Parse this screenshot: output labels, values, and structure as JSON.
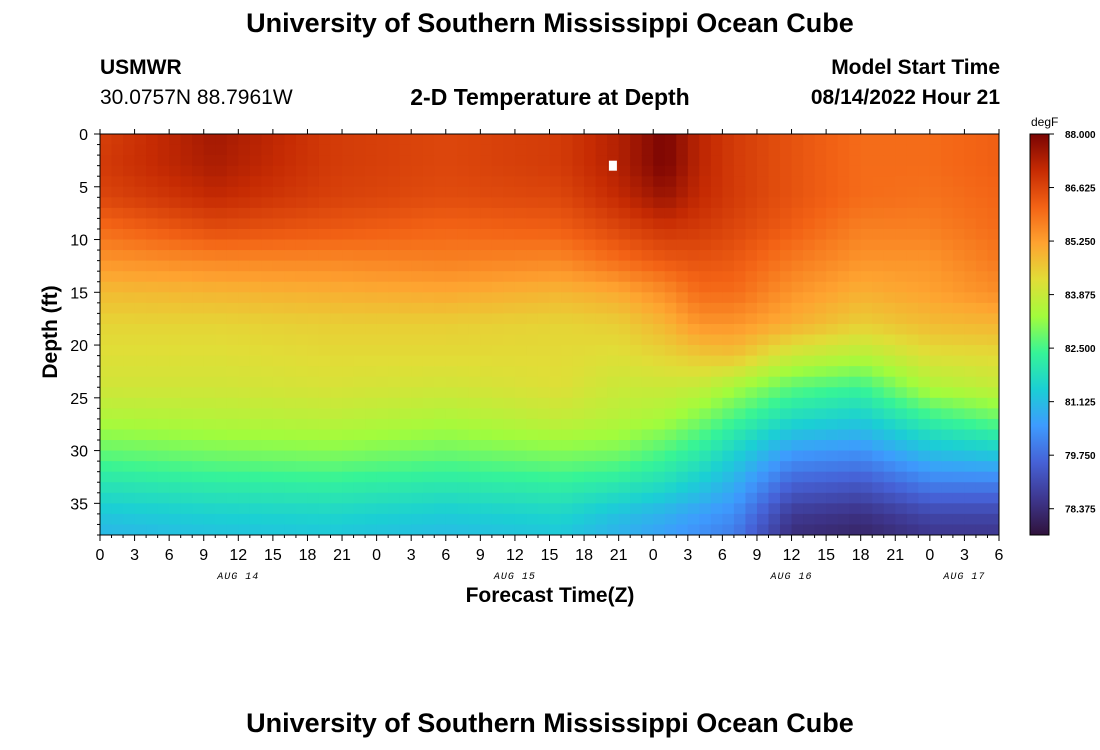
{
  "page": {
    "title": "University of Southern Mississippi Ocean Cube",
    "footer_title": "University of Southern Mississippi Ocean Cube",
    "station": "USMWR",
    "coords": "30.0757N  88.7961W",
    "subtitle": "2-D Temperature at Depth",
    "model_start_label": "Model Start Time",
    "model_start_value": "08/14/2022 Hour 21"
  },
  "chart_data": {
    "type": "heatmap",
    "title": "2-D Temperature at Depth",
    "xlabel": "Forecast Time(Z)",
    "ylabel": "Depth (ft)",
    "x_hours_range": [
      0,
      78
    ],
    "y_depth_range": [
      0,
      38
    ],
    "x_ticks_hours": [
      0,
      3,
      6,
      9,
      12,
      15,
      18,
      21,
      24,
      27,
      30,
      33,
      36,
      39,
      42,
      45,
      48,
      51,
      54,
      57,
      60,
      63,
      66,
      69,
      72,
      75,
      78
    ],
    "x_tick_labels": [
      "0",
      "3",
      "6",
      "9",
      "12",
      "15",
      "18",
      "21",
      "0",
      "3",
      "6",
      "9",
      "12",
      "15",
      "18",
      "21",
      "0",
      "3",
      "6",
      "9",
      "12",
      "15",
      "18",
      "21",
      "0",
      "3",
      "6"
    ],
    "day_labels": [
      {
        "label": "AUG 14",
        "hour": 12
      },
      {
        "label": "AUG 15",
        "hour": 36
      },
      {
        "label": "AUG 16",
        "hour": 60
      },
      {
        "label": "AUG 17",
        "hour": 75
      }
    ],
    "y_ticks": [
      0,
      5,
      10,
      15,
      20,
      25,
      30,
      35
    ],
    "y_tick_labels": [
      "0",
      "5",
      "10",
      "15",
      "20",
      "25",
      "30",
      "35"
    ],
    "colorbar": {
      "unit": "degF",
      "min": 77.7,
      "max": 88.0,
      "tick_values": [
        88.0,
        86.625,
        85.25,
        83.875,
        82.5,
        81.125,
        79.75,
        78.375
      ],
      "tick_labels": [
        "88.000",
        "86.625",
        "85.250",
        "83.875",
        "82.500",
        "81.125",
        "79.750",
        "78.375"
      ]
    },
    "temperature_profiles_degF": {
      "depths_ft": [
        0,
        3,
        6,
        9,
        12,
        15,
        18,
        21,
        24,
        27,
        30,
        33,
        36,
        38
      ],
      "profiles": [
        {
          "hour": 0,
          "values": [
            86.7,
            86.8,
            86.6,
            86.0,
            85.4,
            84.8,
            84.4,
            84.2,
            84.0,
            83.5,
            82.8,
            82.0,
            81.3,
            81.0
          ]
        },
        {
          "hour": 10,
          "values": [
            87.5,
            87.4,
            87.1,
            86.5,
            85.6,
            84.9,
            84.4,
            84.2,
            84.0,
            83.6,
            83.0,
            82.2,
            81.5,
            81.2
          ]
        },
        {
          "hour": 20,
          "values": [
            86.8,
            86.8,
            86.7,
            86.3,
            85.6,
            85.0,
            84.5,
            84.3,
            84.1,
            83.7,
            83.1,
            82.3,
            81.6,
            81.3
          ]
        },
        {
          "hour": 30,
          "values": [
            86.6,
            86.6,
            86.5,
            86.1,
            85.7,
            85.1,
            84.5,
            84.3,
            84.0,
            83.5,
            82.9,
            82.1,
            81.4,
            81.1
          ]
        },
        {
          "hour": 40,
          "values": [
            86.8,
            86.8,
            86.6,
            86.2,
            85.6,
            84.9,
            84.4,
            84.3,
            84.2,
            83.8,
            83.1,
            82.3,
            81.6,
            81.3
          ]
        },
        {
          "hour": 45,
          "values": [
            87.3,
            87.3,
            87.1,
            86.6,
            86.0,
            85.1,
            84.5,
            84.2,
            83.9,
            83.6,
            83.0,
            82.1,
            81.2,
            80.9
          ]
        },
        {
          "hour": 49,
          "values": [
            88.0,
            88.0,
            87.6,
            86.9,
            86.3,
            85.5,
            84.9,
            84.4,
            83.9,
            83.4,
            82.6,
            81.8,
            80.9,
            80.6
          ]
        },
        {
          "hour": 52,
          "values": [
            87.2,
            87.2,
            87.1,
            86.8,
            86.4,
            86.0,
            85.4,
            84.6,
            83.8,
            83.0,
            82.2,
            81.4,
            80.6,
            80.3
          ]
        },
        {
          "hour": 55,
          "values": [
            86.8,
            86.8,
            86.8,
            86.6,
            86.3,
            86.0,
            85.4,
            84.7,
            83.4,
            82.5,
            81.6,
            80.9,
            80.3,
            80.0
          ]
        },
        {
          "hour": 60,
          "values": [
            86.4,
            86.4,
            86.4,
            86.2,
            85.8,
            85.4,
            85.0,
            83.9,
            82.7,
            81.7,
            80.6,
            79.6,
            78.7,
            78.4
          ]
        },
        {
          "hour": 66,
          "values": [
            86.0,
            86.0,
            86.0,
            85.7,
            85.4,
            85.0,
            84.5,
            83.6,
            82.4,
            81.4,
            80.4,
            79.4,
            78.5,
            78.2
          ]
        },
        {
          "hour": 72,
          "values": [
            86.0,
            86.0,
            85.9,
            85.7,
            85.4,
            85.2,
            84.8,
            84.2,
            83.5,
            82.3,
            81.2,
            80.1,
            79.0,
            78.6
          ]
        },
        {
          "hour": 78,
          "values": [
            86.2,
            86.2,
            86.1,
            86.0,
            85.8,
            85.5,
            84.9,
            84.3,
            83.8,
            82.8,
            81.5,
            80.1,
            79.0,
            78.6
          ]
        }
      ]
    },
    "marker": {
      "hour": 44.5,
      "depth_ft": 3,
      "color": "#ffffff"
    },
    "colors": [
      "#30123b",
      "#3e378f",
      "#4662d7",
      "#3e9bfe",
      "#1bcfd4",
      "#36f497",
      "#a2fc3c",
      "#e1dd37",
      "#fea330",
      "#f36315",
      "#c62b03",
      "#7a0403"
    ]
  }
}
